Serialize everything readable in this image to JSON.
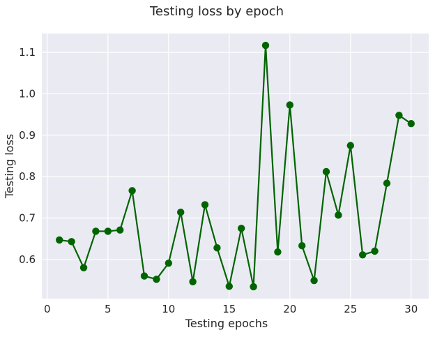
{
  "chart_data": {
    "type": "line",
    "title": "Testing loss by epoch",
    "xlabel": "Testing epochs",
    "ylabel": "Testing loss",
    "x": [
      1,
      2,
      3,
      4,
      5,
      6,
      7,
      8,
      9,
      10,
      11,
      12,
      13,
      14,
      15,
      16,
      17,
      18,
      19,
      20,
      21,
      22,
      23,
      24,
      25,
      26,
      27,
      28,
      29,
      30
    ],
    "series": [
      {
        "values": [
          0.647,
          0.643,
          0.58,
          0.668,
          0.668,
          0.671,
          0.766,
          0.56,
          0.552,
          0.591,
          0.714,
          0.546,
          0.732,
          0.628,
          0.535,
          0.675,
          0.534,
          1.117,
          0.618,
          0.973,
          0.633,
          0.549,
          0.812,
          0.707,
          0.875,
          0.611,
          0.62,
          0.784,
          0.948,
          0.928
        ],
        "color": "#006400"
      }
    ],
    "xlim": [
      -0.45,
      31.45
    ],
    "ylim": [
      0.5053,
      1.1457
    ],
    "xticks": [
      0,
      5,
      10,
      15,
      20,
      25,
      30
    ],
    "yticks": [
      0.6,
      0.7,
      0.8,
      0.9,
      1.0,
      1.1
    ],
    "ytick_labels": [
      "0.6",
      "0.7",
      "0.8",
      "0.9",
      "1.0",
      "1.1"
    ],
    "grid": true,
    "background": "#EAEAF2",
    "grid_color": "#FFFFFF"
  }
}
